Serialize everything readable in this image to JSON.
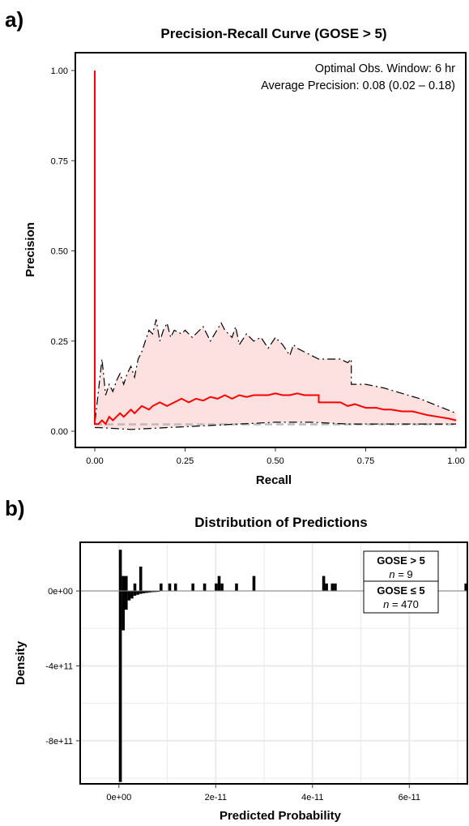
{
  "figure": {
    "panel_a_label": "a)",
    "panel_b_label": "b)"
  },
  "chart_data": [
    {
      "type": "line",
      "title": "Precision-Recall Curve (GOSE > 5)",
      "xlabel": "Recall",
      "ylabel": "Precision",
      "xlim": [
        0,
        1
      ],
      "ylim": [
        0,
        1
      ],
      "xticks": [
        0,
        0.25,
        0.5,
        0.75,
        1
      ],
      "xtick_labels": [
        "0.00",
        "0.25",
        "0.50",
        "0.75",
        "1.00"
      ],
      "yticks": [
        0,
        0.25,
        0.5,
        0.75,
        1
      ],
      "ytick_labels": [
        "0.00",
        "0.25",
        "0.50",
        "0.75",
        "1.00"
      ],
      "annotations": [
        "Optimal Obs. Window: 6 hr",
        "Average Precision: 0.08 (0.02 – 0.18)"
      ],
      "grid": false,
      "colors": {
        "curve": "#ff0000",
        "ci_fill": "#fde0e0",
        "ci_line": "#000000",
        "baseline": "#bbbbbb"
      },
      "series": [
        {
          "role": "curve",
          "x": [
            0,
            0,
            0.01,
            0.02,
            0.03,
            0.04,
            0.05,
            0.07,
            0.08,
            0.1,
            0.11,
            0.13,
            0.15,
            0.16,
            0.18,
            0.2,
            0.22,
            0.24,
            0.26,
            0.28,
            0.3,
            0.32,
            0.34,
            0.36,
            0.38,
            0.4,
            0.42,
            0.44,
            0.46,
            0.48,
            0.5,
            0.52,
            0.54,
            0.56,
            0.58,
            0.6,
            0.62,
            0.62,
            0.65,
            0.68,
            0.7,
            0.72,
            0.75,
            0.78,
            0.8,
            0.82,
            0.85,
            0.88,
            0.9,
            0.92,
            0.95,
            0.98,
            1
          ],
          "y": [
            1,
            0.02,
            0.02,
            0.03,
            0.02,
            0.04,
            0.03,
            0.05,
            0.04,
            0.06,
            0.05,
            0.07,
            0.06,
            0.07,
            0.08,
            0.07,
            0.08,
            0.09,
            0.08,
            0.09,
            0.085,
            0.095,
            0.09,
            0.1,
            0.09,
            0.1,
            0.095,
            0.1,
            0.1,
            0.1,
            0.105,
            0.1,
            0.1,
            0.105,
            0.1,
            0.1,
            0.1,
            0.08,
            0.08,
            0.08,
            0.07,
            0.075,
            0.065,
            0.065,
            0.06,
            0.06,
            0.055,
            0.055,
            0.05,
            0.045,
            0.04,
            0.035,
            0.03
          ]
        },
        {
          "role": "ci_upper",
          "x": [
            0,
            0,
            0.02,
            0.03,
            0.04,
            0.05,
            0.06,
            0.07,
            0.08,
            0.09,
            0.1,
            0.11,
            0.12,
            0.13,
            0.14,
            0.15,
            0.16,
            0.17,
            0.18,
            0.19,
            0.2,
            0.21,
            0.22,
            0.24,
            0.25,
            0.27,
            0.3,
            0.32,
            0.35,
            0.36,
            0.38,
            0.39,
            0.4,
            0.42,
            0.44,
            0.46,
            0.48,
            0.5,
            0.52,
            0.54,
            0.55,
            0.56,
            0.58,
            0.6,
            0.62,
            0.65,
            0.68,
            0.7,
            0.71,
            0.71,
            0.75,
            0.8,
            0.9,
            1
          ],
          "y": [
            1,
            0.02,
            0.2,
            0.1,
            0.13,
            0.11,
            0.14,
            0.16,
            0.13,
            0.16,
            0.18,
            0.15,
            0.2,
            0.22,
            0.25,
            0.28,
            0.27,
            0.31,
            0.25,
            0.28,
            0.3,
            0.26,
            0.28,
            0.27,
            0.28,
            0.26,
            0.29,
            0.25,
            0.3,
            0.28,
            0.26,
            0.29,
            0.24,
            0.27,
            0.25,
            0.26,
            0.23,
            0.26,
            0.24,
            0.21,
            0.24,
            0.23,
            0.22,
            0.21,
            0.2,
            0.2,
            0.2,
            0.19,
            0.2,
            0.13,
            0.13,
            0.12,
            0.09,
            0.05
          ]
        },
        {
          "role": "ci_lower",
          "x": [
            0,
            0.01,
            0.1,
            0.2,
            0.3,
            0.4,
            0.5,
            0.6,
            0.7,
            0.8,
            0.9,
            1
          ],
          "y": [
            0.01,
            0.01,
            0.005,
            0.01,
            0.015,
            0.02,
            0.025,
            0.025,
            0.02,
            0.02,
            0.02,
            0.02
          ]
        },
        {
          "role": "baseline",
          "x": [
            0,
            1
          ],
          "y": [
            0.019,
            0.019
          ]
        }
      ]
    },
    {
      "type": "bar",
      "title": "Distribution of Predictions",
      "xlabel": "Predicted Probability",
      "ylabel": "Density",
      "xlim": [
        -8e-12,
        7.2e-11
      ],
      "ylim": [
        -1030000000000.0,
        260000000000.0
      ],
      "xticks": [
        0,
        2e-11,
        4e-11,
        6e-11
      ],
      "xtick_labels": [
        "0e+00",
        "2e-11",
        "4e-11",
        "6e-11"
      ],
      "yticks": [
        0,
        -400000000000.0,
        -800000000000.0
      ],
      "ytick_labels": [
        "0e+00",
        "-4e+11",
        "-8e+11"
      ],
      "bin_width": 6e-13,
      "grid": true,
      "colors": {
        "bars": "#000000",
        "grid": "#ebebeb",
        "zero_line": "#888888"
      },
      "series": [
        {
          "name": "GOSE > 5",
          "n_label": "n",
          "n_value": "= 9",
          "bin_start": [
            0,
            6e-13,
            1.2e-12,
            3e-12,
            4.2e-12,
            8.4e-12,
            1.02e-11,
            1.14e-11,
            1.5e-11,
            1.74e-11,
            1.98e-11,
            2.04e-11,
            2.1e-11,
            2.4e-11,
            2.76e-11,
            4.2e-11,
            4.26e-11,
            4.38e-11,
            4.44e-11,
            7.14e-11
          ],
          "density": [
            220000000000.0,
            80000000000.0,
            80000000000.0,
            40000000000.0,
            130000000000.0,
            40000000000.0,
            40000000000.0,
            40000000000.0,
            40000000000.0,
            40000000000.0,
            40000000000.0,
            80000000000.0,
            40000000000.0,
            40000000000.0,
            80000000000.0,
            80000000000.0,
            40000000000.0,
            40000000000.0,
            40000000000.0,
            40000000000.0
          ]
        },
        {
          "name": "GOSE ≤ 5",
          "n_label": "n",
          "n_value": "= 470",
          "bin_start": [
            0,
            6e-13,
            1.2e-12,
            1.8e-12,
            2.4e-12,
            3e-12,
            3.6e-12,
            4.2e-12,
            4.8e-12,
            5.4e-12,
            6e-12,
            6.6e-12,
            7.2e-12,
            7.8e-12
          ],
          "density": [
            -1020000000000.0,
            -210000000000.0,
            -100000000000.0,
            -50000000000.0,
            -40000000000.0,
            -25000000000.0,
            -20000000000.0,
            -15000000000.0,
            -12000000000.0,
            -10000000000.0,
            -8000000000.0,
            -6000000000.0,
            -5000000000.0,
            -4000000000.0
          ]
        }
      ]
    }
  ]
}
